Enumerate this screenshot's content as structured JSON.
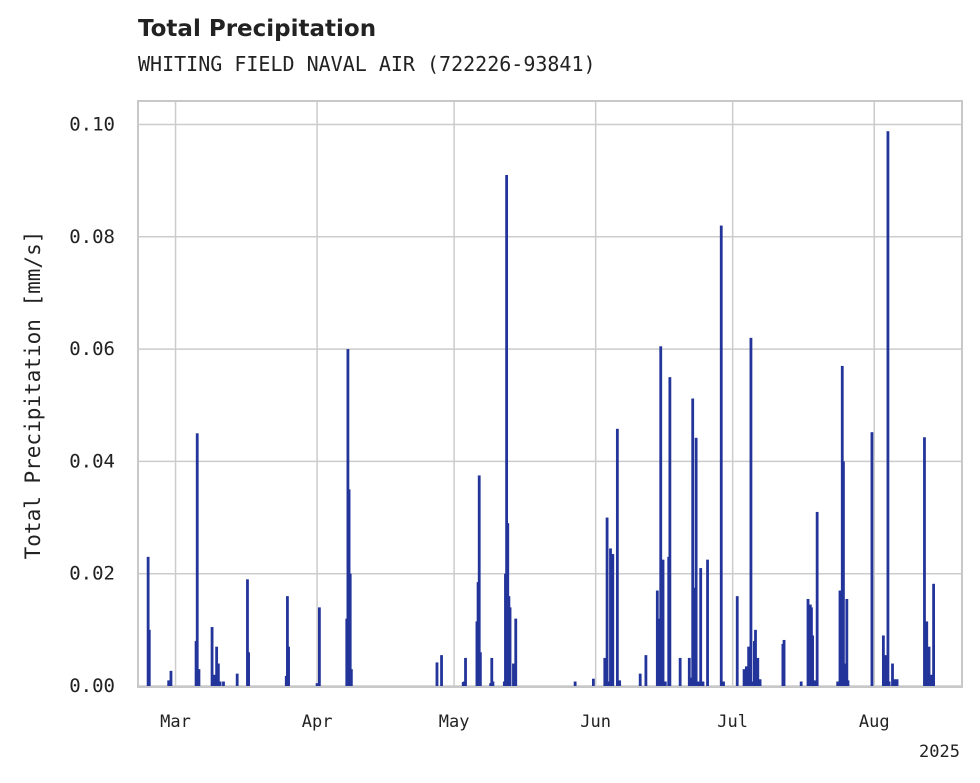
{
  "chart_data": {
    "type": "bar",
    "title": "Total Precipitation",
    "subtitle": "WHITING FIELD NAVAL AIR (722226-93841)",
    "ylabel": "Total Precipitation [mm/s]",
    "xlabel": "",
    "year_label": "2025",
    "ylim": [
      0,
      0.104
    ],
    "xlim": [
      "2025-02-21",
      "2025-08-20"
    ],
    "grid": true,
    "y_ticks": [
      {
        "value": 0.0,
        "label": "0.00"
      },
      {
        "value": 0.02,
        "label": "0.02"
      },
      {
        "value": 0.04,
        "label": "0.04"
      },
      {
        "value": 0.06,
        "label": "0.06"
      },
      {
        "value": 0.08,
        "label": "0.08"
      },
      {
        "value": 0.1,
        "label": "0.10"
      }
    ],
    "x_ticks": [
      {
        "date": "2025-03-01",
        "label": "Mar"
      },
      {
        "date": "2025-04-01",
        "label": "Apr"
      },
      {
        "date": "2025-05-01",
        "label": "May"
      },
      {
        "date": "2025-06-01",
        "label": "Jun"
      },
      {
        "date": "2025-07-01",
        "label": "Jul"
      },
      {
        "date": "2025-08-01",
        "label": "Aug"
      }
    ],
    "series_color": "#23349a",
    "points": [
      {
        "t": "2025-02-23T00:00",
        "v": 0.023
      },
      {
        "t": "2025-02-23T06:00",
        "v": 0.01
      },
      {
        "t": "2025-02-27T12:00",
        "v": 0.001
      },
      {
        "t": "2025-02-28T00:00",
        "v": 0.0027
      },
      {
        "t": "2025-03-05T12:00",
        "v": 0.008
      },
      {
        "t": "2025-03-05T18:00",
        "v": 0.045
      },
      {
        "t": "2025-03-06T03:00",
        "v": 0.003
      },
      {
        "t": "2025-03-09T00:00",
        "v": 0.0105
      },
      {
        "t": "2025-03-09T12:00",
        "v": 0.002
      },
      {
        "t": "2025-03-10T00:00",
        "v": 0.007
      },
      {
        "t": "2025-03-10T09:00",
        "v": 0.004
      },
      {
        "t": "2025-03-10T18:00",
        "v": 0.0008
      },
      {
        "t": "2025-03-11T12:00",
        "v": 0.0008
      },
      {
        "t": "2025-03-14T12:00",
        "v": 0.0022
      },
      {
        "t": "2025-03-16T18:00",
        "v": 0.019
      },
      {
        "t": "2025-03-17T00:00",
        "v": 0.006
      },
      {
        "t": "2025-03-25T06:00",
        "v": 0.0018
      },
      {
        "t": "2025-03-25T12:00",
        "v": 0.016
      },
      {
        "t": "2025-03-25T18:00",
        "v": 0.007
      },
      {
        "t": "2025-04-01T00:00",
        "v": 0.0005
      },
      {
        "t": "2025-04-01T12:00",
        "v": 0.014
      },
      {
        "t": "2025-04_placeholder",
        "v": 0
      }
    ],
    "points2": [
      {
        "t": "2025-04-07T12:00",
        "v": 0.012
      },
      {
        "t": "2025-04-07T18:00",
        "v": 0.06
      },
      {
        "t": "2025-04-08T00:00",
        "v": 0.035
      },
      {
        "t": "2025-04-08T06:00",
        "v": 0.02
      },
      {
        "t": "2025-04-08T12:00",
        "v": 0.003
      },
      {
        "t": "2025-04-27T06:00",
        "v": 0.0042
      },
      {
        "t": "2025-04-28T06:00",
        "v": 0.0055
      },
      {
        "t": "2025-05-03T00:00",
        "v": 0.0007
      },
      {
        "t": "2025-05-03T06:00",
        "v": 0.0008
      },
      {
        "t": "2025-05-03T12:00",
        "v": 0.005
      },
      {
        "t": "2025-05-06T00:00",
        "v": 0.0115
      },
      {
        "t": "2025-05-06T06:00",
        "v": 0.0185
      },
      {
        "t": "2025-05-06T12:00",
        "v": 0.0375
      },
      {
        "t": "2025-05-06T18:00",
        "v": 0.006
      },
      {
        "t": "2025-05-09T00:00",
        "v": 0.0005
      },
      {
        "t": "2025-05-09T06:00",
        "v": 0.005
      },
      {
        "t": "2025-05-09T12:00",
        "v": 0.0008
      },
      {
        "t": "2025-05-12T00:00",
        "v": 0.0008
      },
      {
        "t": "2025-05-12T06:00",
        "v": 0.02
      },
      {
        "t": "2025-05-12T12:00",
        "v": 0.091
      },
      {
        "t": "2025-05-12T18:00",
        "v": 0.029
      },
      {
        "t": "2025-05-13T00:00",
        "v": 0.016
      },
      {
        "t": "2025-05-13T06:00",
        "v": 0.014
      },
      {
        "t": "2025-05-14T00:00",
        "v": 0.004
      },
      {
        "t": "2025-05-14T12:00",
        "v": 0.012
      },
      {
        "t": "2025-05-27T12:00",
        "v": 0.0008
      },
      {
        "t": "2025-05-31T12:00",
        "v": 0.0013
      }
    ],
    "points3": [
      {
        "t": "2025-06-03T00:00",
        "v": 0.005
      },
      {
        "t": "2025-06-03T12:00",
        "v": 0.03
      },
      {
        "t": "2025-06-04T00:00",
        "v": 0.0008
      },
      {
        "t": "2025-06-04T06:00",
        "v": 0.0245
      },
      {
        "t": "2025-06-04T18:00",
        "v": 0.0235
      },
      {
        "t": "2025-06-05T18:00",
        "v": 0.0458
      },
      {
        "t": "2025-06-06T06:00",
        "v": 0.001
      },
      {
        "t": "2025-06-10T18:00",
        "v": 0.0022
      },
      {
        "t": "2025-06-12T00:00",
        "v": 0.0055
      },
      {
        "t": "2025-06-14T12:00",
        "v": 0.017
      },
      {
        "t": "2025-06-15T00:00",
        "v": 0.012
      },
      {
        "t": "2025-06-15T06:00",
        "v": 0.0605
      },
      {
        "t": "2025-06-15T12:00",
        "v": 0.022
      },
      {
        "t": "2025-06-15T18:00",
        "v": 0.0225
      },
      {
        "t": "2025-06-16T06:00",
        "v": 0.0008
      },
      {
        "t": "2025-06-17T00:00",
        "v": 0.023
      },
      {
        "t": "2025-06-17T06:00",
        "v": 0.055
      },
      {
        "t": "2025-06-19T12:00",
        "v": 0.005
      },
      {
        "t": "2025-06-21T12:00",
        "v": 0.005
      },
      {
        "t": "2025-06-22T00:00",
        "v": 0.0015
      },
      {
        "t": "2025-06-22T06:00",
        "v": 0.0512
      },
      {
        "t": "2025-06-22T12:00",
        "v": 0.0175
      },
      {
        "t": "2025-06-23T00:00",
        "v": 0.0442
      },
      {
        "t": "2025-06-23T12:00",
        "v": 0.0008
      },
      {
        "t": "2025-06-24T00:00",
        "v": 0.021
      },
      {
        "t": "2025-06-24T12:00",
        "v": 0.0008
      },
      {
        "t": "2025-06-25T12:00",
        "v": 0.0225
      },
      {
        "t": "2025-06-28T12:00",
        "v": 0.082
      },
      {
        "t": "2025-06-29T00:00",
        "v": 0.0008
      },
      {
        "t": "2025-07-02T00:00",
        "v": 0.016
      },
      {
        "t": "2025-07-03T12:00",
        "v": 0.003
      },
      {
        "t": "2025-07-04T00:00",
        "v": 0.0035
      },
      {
        "t": "2025-07-04T12:00",
        "v": 0.007
      },
      {
        "t": "2025-07-05T00:00",
        "v": 0.062
      },
      {
        "t": "2025-07-05T12:00",
        "v": 0.0008
      },
      {
        "t": "2025-07-05T18:00",
        "v": 0.008
      },
      {
        "t": "2025-07-06T00:00",
        "v": 0.01
      },
      {
        "t": "2025-07-06T12:00",
        "v": 0.005
      },
      {
        "t": "2025-07-07T00:00",
        "v": 0.0012
      }
    ],
    "points4": [
      {
        "t": "2025-07-12T00:00",
        "v": 0.0075
      },
      {
        "t": "2025-07-12T06:00",
        "v": 0.0082
      },
      {
        "t": "2025-07-16T00:00",
        "v": 0.0008
      },
      {
        "t": "2025-07-17T12:00",
        "v": 0.0155
      },
      {
        "t": "2025-07-18T00:00",
        "v": 0.0145
      },
      {
        "t": "2025-07-18T06:00",
        "v": 0.014
      },
      {
        "t": "2025-07-18T12:00",
        "v": 0.009
      },
      {
        "t": "2025-07-19T00:00",
        "v": 0.001
      },
      {
        "t": "2025-07-19T12:00",
        "v": 0.031
      },
      {
        "t": "2025-07-24T00:00",
        "v": 0.0008
      },
      {
        "t": "2025-07-24T12:00",
        "v": 0.017
      },
      {
        "t": "2025-07-25T00:00",
        "v": 0.057
      },
      {
        "t": "2025-07-25T06:00",
        "v": 0.04
      },
      {
        "t": "2025-07-25T12:00",
        "v": 0.004
      },
      {
        "t": "2025-07-26T00:00",
        "v": 0.0155
      },
      {
        "t": "2025-07-26T06:00",
        "v": 0.001
      },
      {
        "t": "2025-07-31T12:00",
        "v": 0.0452
      },
      {
        "t": "2025-08-03T00:00",
        "v": 0.009
      },
      {
        "t": "2025-08-03T12:00",
        "v": 0.0055
      },
      {
        "t": "2025-08-04T00:00",
        "v": 0.0988
      },
      {
        "t": "2025-08-04T06:00",
        "v": 0.0008
      },
      {
        "t": "2025-08-05T00:00",
        "v": 0.004
      },
      {
        "t": "2025-08-05T12:00",
        "v": 0.0012
      },
      {
        "t": "2025-08-06T00:00",
        "v": 0.0012
      },
      {
        "t": "2025-08-12T00:00",
        "v": 0.0443
      },
      {
        "t": "2025-08-12T12:00",
        "v": 0.0115
      },
      {
        "t": "2025-08-13T00:00",
        "v": 0.007
      },
      {
        "t": "2025-08-13T12:00",
        "v": 0.002
      },
      {
        "t": "2025-08-14T00:00",
        "v": 0.0182
      }
    ]
  }
}
